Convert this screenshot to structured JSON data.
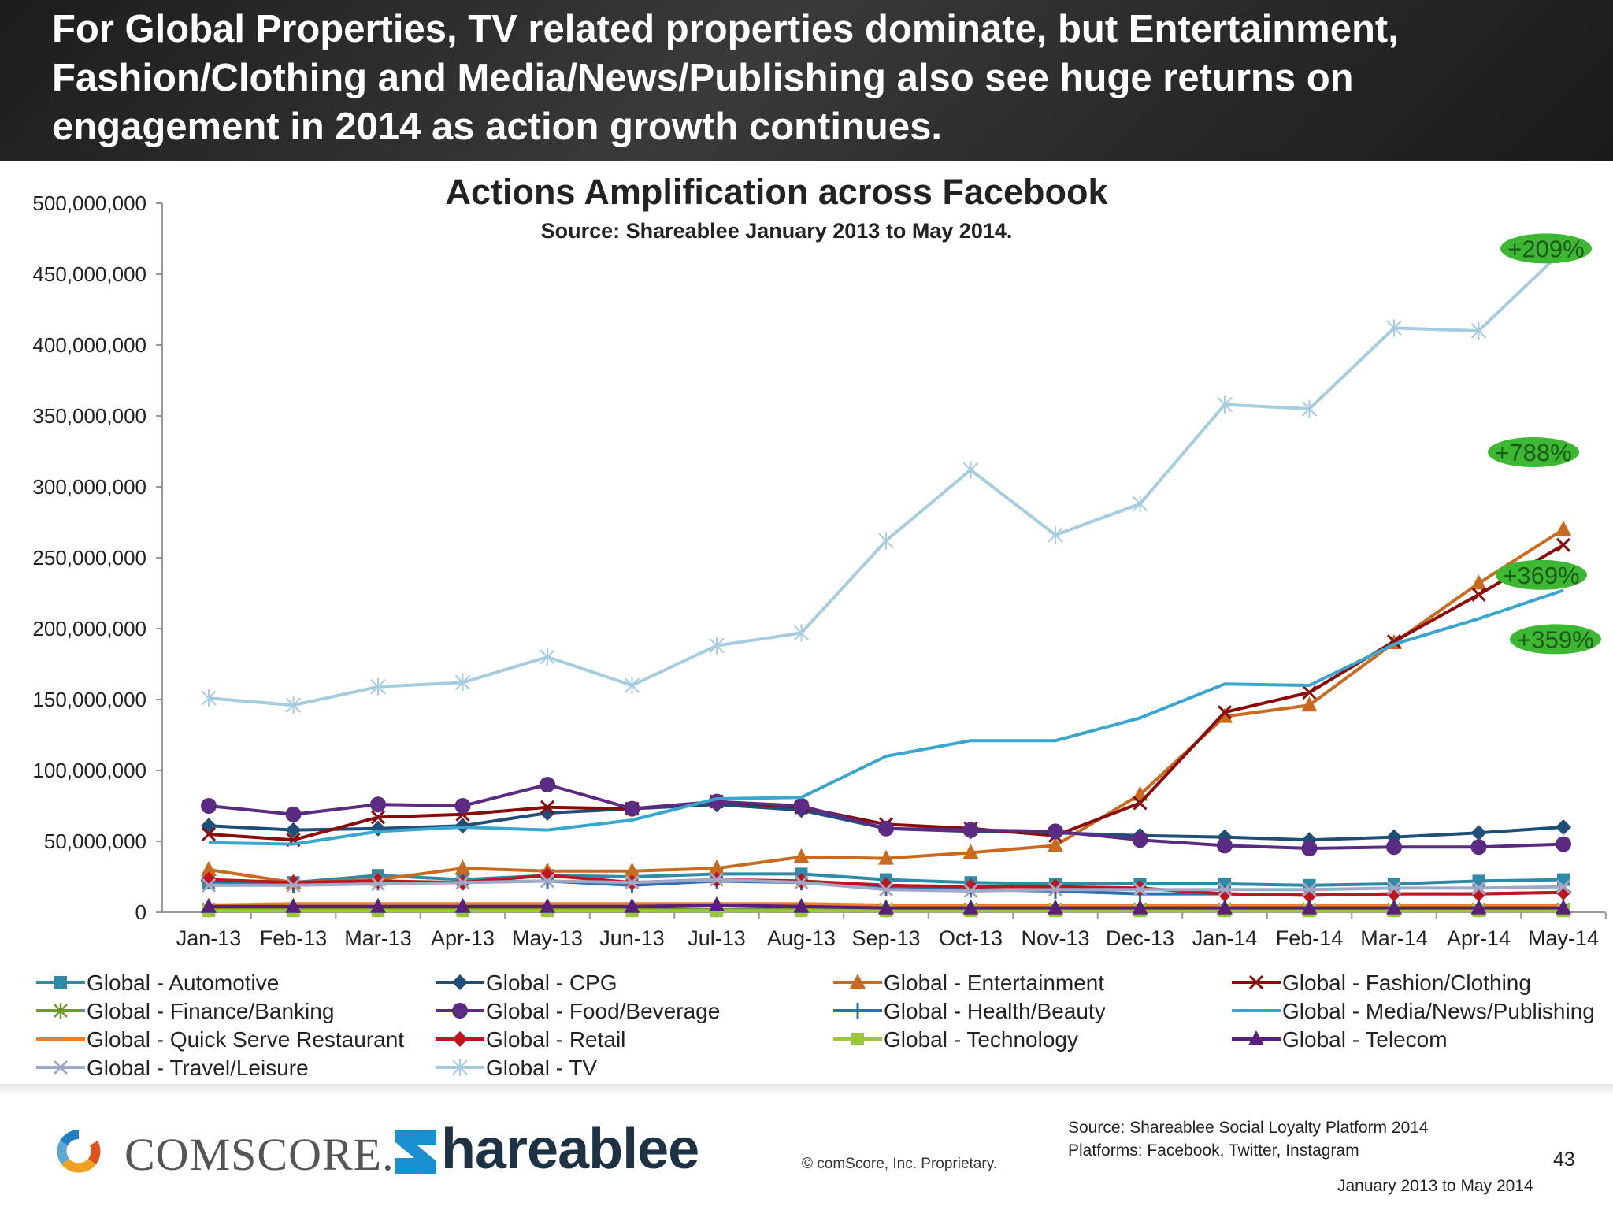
{
  "slide": {
    "headline": "For Global Properties, TV related properties dominate, but Entertainment, Fashion/Clothing and Media/News/Publishing also see huge returns on engagement in 2014 as action growth continues."
  },
  "chart_data": {
    "type": "line",
    "title": "Actions Amplification across Facebook",
    "subtitle": "Source: Shareablee January 2013 to May 2014.",
    "categories": [
      "Jan-13",
      "Feb-13",
      "Mar-13",
      "Apr-13",
      "May-13",
      "Jun-13",
      "Jul-13",
      "Aug-13",
      "Sep-13",
      "Oct-13",
      "Nov-13",
      "Dec-13",
      "Jan-14",
      "Feb-14",
      "Mar-14",
      "Apr-14",
      "May-14"
    ],
    "ylim": [
      0,
      500000000
    ],
    "yticks": [
      0,
      50000000,
      100000000,
      150000000,
      200000000,
      250000000,
      300000000,
      350000000,
      400000000,
      450000000,
      500000000
    ],
    "ytick_labels": [
      "0",
      "50,000,000",
      "100,000,000",
      "150,000,000",
      "200,000,000",
      "250,000,000",
      "300,000,000",
      "350,000,000",
      "400,000,000",
      "450,000,000",
      "500,000,000"
    ],
    "grid": false,
    "legend_position": "bottom",
    "series": [
      {
        "name": "Global - Automotive",
        "color": "#2e8aa6",
        "marker": "square",
        "values": [
          21000000,
          21000000,
          26000000,
          23000000,
          26000000,
          25000000,
          27000000,
          27000000,
          23000000,
          21000000,
          20000000,
          20000000,
          20000000,
          19000000,
          20000000,
          22000000,
          23000000
        ]
      },
      {
        "name": "Global - CPG",
        "color": "#1f4e79",
        "marker": "diamond",
        "values": [
          61000000,
          58000000,
          59000000,
          61000000,
          70000000,
          73000000,
          76000000,
          72000000,
          59000000,
          57000000,
          56000000,
          54000000,
          53000000,
          51000000,
          53000000,
          56000000,
          60000000
        ]
      },
      {
        "name": "Global - Entertainment",
        "color": "#c96a1e",
        "marker": "triangle",
        "values": [
          30000000,
          21000000,
          23000000,
          31000000,
          29000000,
          29000000,
          31000000,
          39000000,
          38000000,
          42000000,
          47000000,
          83000000,
          138000000,
          146000000,
          190000000,
          232000000,
          270000000
        ]
      },
      {
        "name": "Global - Fashion/Clothing",
        "color": "#8b0a0a",
        "marker": "x",
        "values": [
          55000000,
          51000000,
          67000000,
          69000000,
          74000000,
          73000000,
          78000000,
          74000000,
          62000000,
          59000000,
          54000000,
          77000000,
          141000000,
          155000000,
          191000000,
          224000000,
          259000000
        ]
      },
      {
        "name": "Global - Finance/Banking",
        "color": "#6a9a2a",
        "marker": "star",
        "values": [
          2000000,
          2000000,
          2000000,
          2000000,
          2000000,
          2000000,
          2000000,
          2000000,
          2000000,
          2000000,
          2000000,
          2000000,
          2000000,
          2000000,
          2000000,
          2000000,
          2000000
        ]
      },
      {
        "name": "Global - Food/Beverage",
        "color": "#5b2a82",
        "marker": "circle",
        "values": [
          75000000,
          69000000,
          76000000,
          75000000,
          90000000,
          73000000,
          78000000,
          75000000,
          59000000,
          58000000,
          57000000,
          51000000,
          47000000,
          45000000,
          46000000,
          46000000,
          48000000
        ]
      },
      {
        "name": "Global - Health/Beauty",
        "color": "#2c6eb5",
        "marker": "plus",
        "values": [
          22000000,
          19000000,
          21000000,
          21000000,
          22000000,
          19000000,
          22000000,
          21000000,
          17000000,
          16000000,
          15000000,
          13000000,
          13000000,
          12000000,
          13000000,
          13000000,
          14000000
        ]
      },
      {
        "name": "Global - Media/News/Publishing",
        "color": "#3aa6d0",
        "marker": "none",
        "values": [
          49000000,
          48000000,
          57000000,
          60000000,
          58000000,
          65000000,
          80000000,
          81000000,
          110000000,
          121000000,
          121000000,
          137000000,
          161000000,
          160000000,
          189000000,
          207000000,
          227000000
        ]
      },
      {
        "name": "Global - Quick Serve Restaurant",
        "color": "#f07c28",
        "marker": "none",
        "values": [
          5000000,
          6000000,
          6000000,
          6000000,
          6000000,
          6000000,
          6000000,
          6000000,
          5000000,
          5000000,
          5000000,
          5000000,
          5000000,
          5000000,
          5000000,
          5000000,
          5000000
        ]
      },
      {
        "name": "Global - Retail",
        "color": "#c0141e",
        "marker": "diamond",
        "values": [
          23000000,
          21000000,
          22000000,
          21000000,
          26000000,
          21000000,
          23000000,
          22000000,
          19000000,
          18000000,
          18000000,
          17000000,
          13000000,
          12000000,
          13000000,
          13000000,
          14000000
        ]
      },
      {
        "name": "Global - Technology",
        "color": "#9ac83c",
        "marker": "square",
        "values": [
          1000000,
          1000000,
          1000000,
          1000000,
          1000000,
          1000000,
          1000000,
          1000000,
          1000000,
          1000000,
          1000000,
          1000000,
          1000000,
          1000000,
          1000000,
          1000000,
          1000000
        ]
      },
      {
        "name": "Global - Telecom",
        "color": "#5a1f7a",
        "marker": "triangle",
        "values": [
          4000000,
          4000000,
          4000000,
          4000000,
          4000000,
          4000000,
          5000000,
          4000000,
          3000000,
          3000000,
          3000000,
          3000000,
          3000000,
          3000000,
          3000000,
          3000000,
          3000000
        ]
      },
      {
        "name": "Global - Travel/Leisure",
        "color": "#a0a8c8",
        "marker": "x",
        "values": [
          19000000,
          19000000,
          20000000,
          21000000,
          22000000,
          21000000,
          23000000,
          21000000,
          16000000,
          15000000,
          16000000,
          16000000,
          16000000,
          16000000,
          17000000,
          17000000,
          18000000
        ]
      },
      {
        "name": "Global - TV",
        "color": "#a6cce0",
        "marker": "asterisk",
        "values": [
          151000000,
          146000000,
          159000000,
          162000000,
          180000000,
          160000000,
          188000000,
          197000000,
          262000000,
          312000000,
          266000000,
          288000000,
          358000000,
          355000000,
          412000000,
          410000000,
          467000000
        ]
      }
    ],
    "annotations": [
      {
        "text": "+209%",
        "series": "Global - TV"
      },
      {
        "text": "+788%",
        "series": "Global - Entertainment"
      },
      {
        "text": "+369%",
        "series": "Global - Fashion/Clothing"
      },
      {
        "text": "+359%",
        "series": "Global - Media/News/Publishing"
      }
    ],
    "annotation_color": "#3cb832"
  },
  "footer": {
    "comscore_brand": "COMSCORE.",
    "shareablee_brand": "hareablee",
    "copyright": "© comScore, Inc.    Proprietary.",
    "source_line1": "Source: Shareablee Social Loyalty Platform 2014",
    "source_line2": "Platforms: Facebook, Twitter, Instagram",
    "page_number": "43",
    "date_range": "January 2013 to May 2014",
    "comscore_colors": [
      "#1f7fc1",
      "#f0a020",
      "#e0531e",
      "#5aa8d8"
    ],
    "shareablee_color": "#1a8fd0"
  }
}
